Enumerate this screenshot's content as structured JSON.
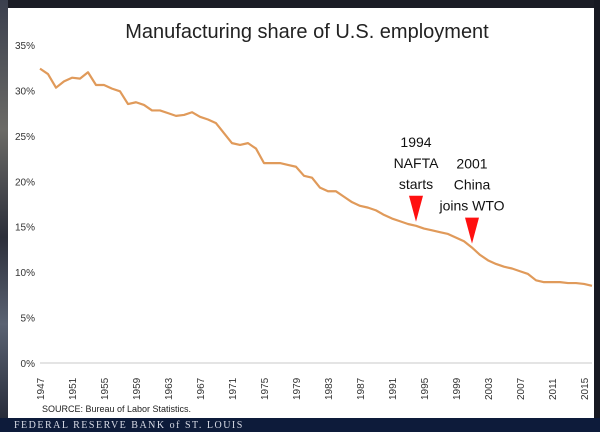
{
  "chart_data": {
    "type": "line",
    "title": "Manufacturing share of U.S. employment",
    "xlabel": "",
    "ylabel": "",
    "xlim": [
      1947,
      2016
    ],
    "ylim": [
      0,
      35
    ],
    "y_ticks": [
      0,
      5,
      10,
      15,
      20,
      25,
      30,
      35
    ],
    "y_tick_labels": [
      "0%",
      "5%",
      "10%",
      "15%",
      "20%",
      "25%",
      "30%",
      "35%"
    ],
    "x_tick_labels": [
      "1947",
      "1951",
      "1955",
      "1959",
      "1963",
      "1967",
      "1971",
      "1975",
      "1979",
      "1983",
      "1987",
      "1991",
      "1995",
      "1999",
      "2003",
      "2007",
      "2011",
      "2015"
    ],
    "grid": false,
    "line_color": "#e09a5a",
    "series": [
      {
        "name": "Manufacturing share of employment",
        "x": [
          1947,
          1948,
          1949,
          1950,
          1951,
          1952,
          1953,
          1954,
          1955,
          1956,
          1957,
          1958,
          1959,
          1960,
          1961,
          1962,
          1963,
          1964,
          1965,
          1966,
          1967,
          1968,
          1969,
          1970,
          1971,
          1972,
          1973,
          1974,
          1975,
          1976,
          1977,
          1978,
          1979,
          1980,
          1981,
          1982,
          1983,
          1984,
          1985,
          1986,
          1987,
          1988,
          1989,
          1990,
          1991,
          1992,
          1993,
          1994,
          1995,
          1996,
          1997,
          1998,
          1999,
          2000,
          2001,
          2002,
          2003,
          2004,
          2005,
          2006,
          2007,
          2008,
          2009,
          2010,
          2011,
          2012,
          2013,
          2014,
          2015,
          2016
        ],
        "y": [
          32.4,
          31.8,
          30.3,
          31.0,
          31.4,
          31.3,
          32.0,
          30.6,
          30.6,
          30.2,
          29.9,
          28.5,
          28.7,
          28.4,
          27.8,
          27.8,
          27.5,
          27.2,
          27.3,
          27.6,
          27.1,
          26.8,
          26.4,
          25.3,
          24.2,
          24.0,
          24.2,
          23.6,
          22.0,
          22.0,
          22.0,
          21.8,
          21.6,
          20.6,
          20.4,
          19.3,
          18.9,
          18.9,
          18.3,
          17.7,
          17.3,
          17.1,
          16.8,
          16.3,
          15.9,
          15.6,
          15.3,
          15.1,
          14.8,
          14.6,
          14.4,
          14.2,
          13.8,
          13.4,
          12.7,
          11.9,
          11.3,
          10.9,
          10.6,
          10.4,
          10.1,
          9.8,
          9.1,
          8.9,
          8.9,
          8.9,
          8.8,
          8.8,
          8.7,
          8.5
        ]
      }
    ],
    "annotations": [
      {
        "year": 1994,
        "value": 15.1,
        "lines": [
          "1994",
          "NAFTA",
          "starts"
        ],
        "marker_color": "#ff1010"
      },
      {
        "year": 2001,
        "value": 12.7,
        "lines": [
          "2001",
          "China",
          "joins WTO"
        ],
        "marker_color": "#ff1010"
      }
    ],
    "source": "SOURCE: Bureau of Labor Statistics."
  },
  "footer": {
    "text": "FEDERAL RESERVE BANK of ST. LOUIS"
  }
}
